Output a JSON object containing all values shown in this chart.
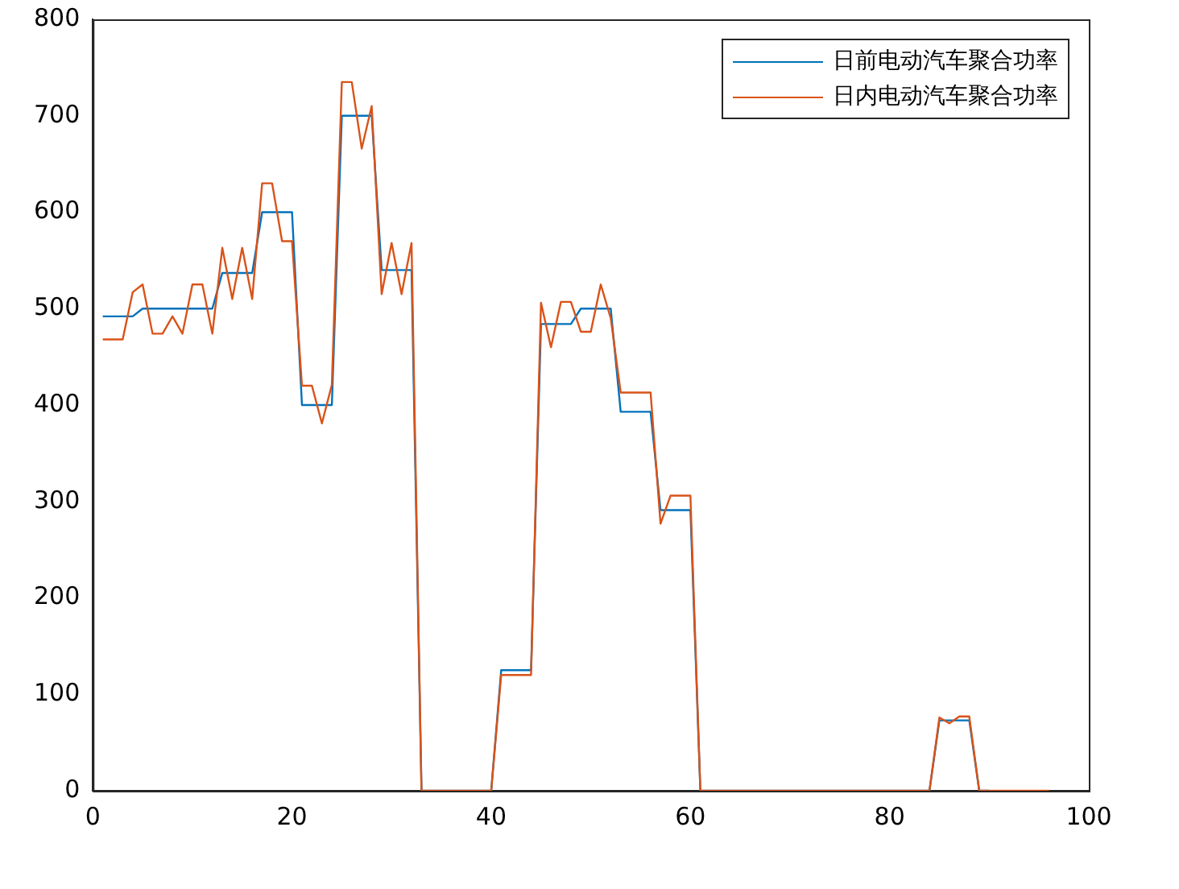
{
  "chart_data": {
    "type": "line",
    "x": [
      1,
      2,
      3,
      4,
      5,
      6,
      7,
      8,
      9,
      10,
      11,
      12,
      13,
      14,
      15,
      16,
      17,
      18,
      19,
      20,
      21,
      22,
      23,
      24,
      25,
      26,
      27,
      28,
      29,
      30,
      31,
      32,
      33,
      34,
      35,
      36,
      37,
      38,
      39,
      40,
      41,
      42,
      43,
      44,
      45,
      46,
      47,
      48,
      49,
      50,
      51,
      52,
      53,
      54,
      55,
      56,
      57,
      58,
      59,
      60,
      61,
      62,
      63,
      64,
      65,
      66,
      67,
      68,
      69,
      70,
      71,
      72,
      73,
      74,
      75,
      76,
      77,
      78,
      79,
      80,
      81,
      82,
      83,
      84,
      85,
      86,
      87,
      88,
      89,
      90,
      91,
      92,
      93,
      94,
      95,
      96
    ],
    "series": [
      {
        "name": "日前电动汽车聚合功率",
        "color": "#0072bd",
        "values": [
          492,
          492,
          492,
          492,
          500,
          500,
          500,
          500,
          500,
          500,
          500,
          500,
          537,
          537,
          537,
          537,
          600,
          600,
          600,
          600,
          400,
          400,
          400,
          400,
          700,
          700,
          700,
          700,
          540,
          540,
          540,
          540,
          0,
          0,
          0,
          0,
          0,
          0,
          0,
          0,
          125,
          125,
          125,
          125,
          484,
          484,
          484,
          484,
          500,
          500,
          500,
          500,
          393,
          393,
          393,
          393,
          291,
          291,
          291,
          291,
          0,
          0,
          0,
          0,
          0,
          0,
          0,
          0,
          0,
          0,
          0,
          0,
          0,
          0,
          0,
          0,
          0,
          0,
          0,
          0,
          0,
          0,
          0,
          0,
          73,
          73,
          73,
          73,
          0,
          0,
          null,
          null,
          null,
          null,
          null,
          null
        ]
      },
      {
        "name": "日内电动汽车聚合功率",
        "color": "#d95319",
        "values": [
          468,
          468,
          468,
          517,
          525,
          474,
          474,
          492,
          474,
          525,
          525,
          474,
          563,
          510,
          563,
          510,
          630,
          630,
          570,
          570,
          420,
          420,
          381,
          421,
          735,
          735,
          666,
          710,
          515,
          568,
          515,
          568,
          0,
          0,
          0,
          0,
          0,
          0,
          0,
          0,
          120,
          120,
          120,
          120,
          506,
          460,
          507,
          507,
          476,
          476,
          525,
          490,
          413,
          413,
          413,
          413,
          277,
          306,
          306,
          306,
          0,
          0,
          0,
          0,
          0,
          0,
          0,
          0,
          0,
          0,
          0,
          0,
          0,
          0,
          0,
          0,
          0,
          0,
          0,
          0,
          0,
          0,
          0,
          0,
          76,
          70,
          77,
          77,
          0,
          0,
          0,
          0,
          0,
          0,
          0,
          0
        ]
      }
    ],
    "xlim": [
      0,
      100
    ],
    "xticks": [
      0,
      20,
      40,
      60,
      80,
      100
    ],
    "ylim": [
      0,
      800
    ],
    "yticks": [
      0,
      100,
      200,
      300,
      400,
      500,
      600,
      700,
      800
    ],
    "grid": false,
    "legend": "top right",
    "marker": "none",
    "line_style": "solid"
  }
}
